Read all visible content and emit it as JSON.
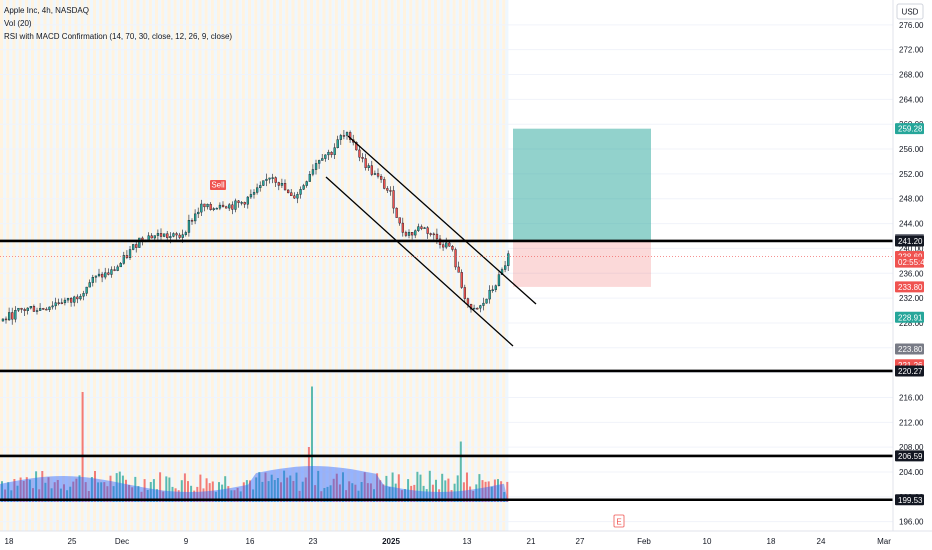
{
  "legend": {
    "symbol": "Apple Inc, 4h, NASDAQ",
    "volume": "Vol (20)",
    "indicator": "RSI with MACD Confirmation (14, 70, 30, close, 12, 26, 9, close)"
  },
  "price_axis": {
    "currency": "USD",
    "ticks": [
      "276.00",
      "272.00",
      "268.00",
      "264.00",
      "260.00",
      "256.00",
      "252.00",
      "248.00",
      "244.00",
      "240.00",
      "236.00",
      "232.00",
      "228.00",
      "224.00",
      "220.00",
      "216.00",
      "212.00",
      "208.00",
      "204.00",
      "200.00",
      "196.00"
    ]
  },
  "time_axis": {
    "labels": [
      "18",
      "25",
      "Dec",
      "9",
      "16",
      "23",
      "2025",
      "13",
      "21",
      "27",
      "Feb",
      "10",
      "18",
      "24",
      "Mar"
    ]
  },
  "price_labels": [
    {
      "text": "259.28",
      "value": 259.28,
      "color": "#26a69a"
    },
    {
      "text": "241.44",
      "value": 241.44,
      "color": "#787b86"
    },
    {
      "text": "241.20",
      "value": 241.2,
      "color": "#131722"
    },
    {
      "text": "238.69",
      "value": 238.69,
      "color": "#ef5350"
    },
    {
      "text": "02:55:47",
      "value": 237.8,
      "color": "#ef5350"
    },
    {
      "text": "233.80",
      "value": 233.8,
      "color": "#ef5350"
    },
    {
      "text": "228.91",
      "value": 228.91,
      "color": "#26a69a"
    },
    {
      "text": "223.80",
      "value": 223.8,
      "color": "#787b86"
    },
    {
      "text": "221.26",
      "value": 221.26,
      "color": "#ef5350"
    },
    {
      "text": "220.27",
      "value": 220.27,
      "color": "#131722"
    },
    {
      "text": "206.59",
      "value": 206.59,
      "color": "#131722"
    },
    {
      "text": "199.53",
      "value": 199.53,
      "color": "#131722"
    }
  ],
  "horizontal_levels": [
    241.2,
    220.27,
    206.59,
    199.53
  ],
  "position_tool": {
    "entry": 241.2,
    "target": 259.28,
    "stop": 233.8,
    "end_label": "Feb"
  },
  "signal_badge": {
    "text": "Sell",
    "color": "#ef5350"
  },
  "earnings_marker": {
    "text": "E"
  },
  "colors": {
    "up": "#26a69a",
    "down": "#ef5350",
    "vol_area": "#2962ff",
    "session_up": "#fff3e0",
    "session_down": "#e3f2fd"
  },
  "chart_data": {
    "type": "candlestick",
    "symbol": "Apple Inc",
    "interval": "4h",
    "ylim": [
      194.5,
      280
    ],
    "x_axis_dates": [
      "Nov 18",
      "Nov 25",
      "Dec",
      "Dec 9",
      "Dec 16",
      "Dec 23",
      "2025",
      "Jan 13",
      "Jan 21",
      "Jan 27",
      "Feb",
      "Feb 10",
      "Feb 18",
      "Feb 24",
      "Mar"
    ],
    "approx_close_path": [
      [
        0,
        228.3
      ],
      [
        10,
        229.2
      ],
      [
        20,
        230.0
      ],
      [
        30,
        230.4
      ],
      [
        40,
        230.3
      ],
      [
        50,
        230.9
      ],
      [
        60,
        231.6
      ],
      [
        70,
        231.4
      ],
      [
        80,
        233.0
      ],
      [
        90,
        234.8
      ],
      [
        100,
        235.6
      ],
      [
        110,
        236.1
      ],
      [
        120,
        237.6
      ],
      [
        130,
        239.7
      ],
      [
        140,
        241.8
      ],
      [
        150,
        242.0
      ],
      [
        160,
        242.2
      ],
      [
        170,
        241.8
      ],
      [
        180,
        242.0
      ],
      [
        190,
        244.6
      ],
      [
        200,
        246.7
      ],
      [
        210,
        246.3
      ],
      [
        220,
        247.4
      ],
      [
        230,
        246.8
      ],
      [
        240,
        247.3
      ],
      [
        250,
        248.4
      ],
      [
        260,
        249.7
      ],
      [
        270,
        252.0
      ],
      [
        280,
        250.3
      ],
      [
        290,
        248.0
      ],
      [
        300,
        249.5
      ],
      [
        310,
        252.6
      ],
      [
        320,
        255.0
      ],
      [
        330,
        255.4
      ],
      [
        340,
        257.9
      ],
      [
        350,
        258.2
      ],
      [
        360,
        254.4
      ],
      [
        370,
        252.5
      ],
      [
        380,
        250.7
      ],
      [
        390,
        248.6
      ],
      [
        400,
        243.0
      ],
      [
        410,
        242.3
      ],
      [
        420,
        243.6
      ],
      [
        430,
        242.4
      ],
      [
        440,
        241.0
      ],
      [
        450,
        240.2
      ],
      [
        460,
        234.2
      ],
      [
        470,
        229.6
      ],
      [
        480,
        230.6
      ],
      [
        490,
        233.0
      ],
      [
        500,
        235.8
      ],
      [
        507,
        238.7
      ]
    ],
    "volume_spikes": [
      {
        "x": 82,
        "relative": 1.0
      },
      {
        "x": 310,
        "relative": 1.05
      },
      {
        "x": 308,
        "relative": 0.5
      },
      {
        "x": 460,
        "relative": 0.55
      }
    ]
  }
}
